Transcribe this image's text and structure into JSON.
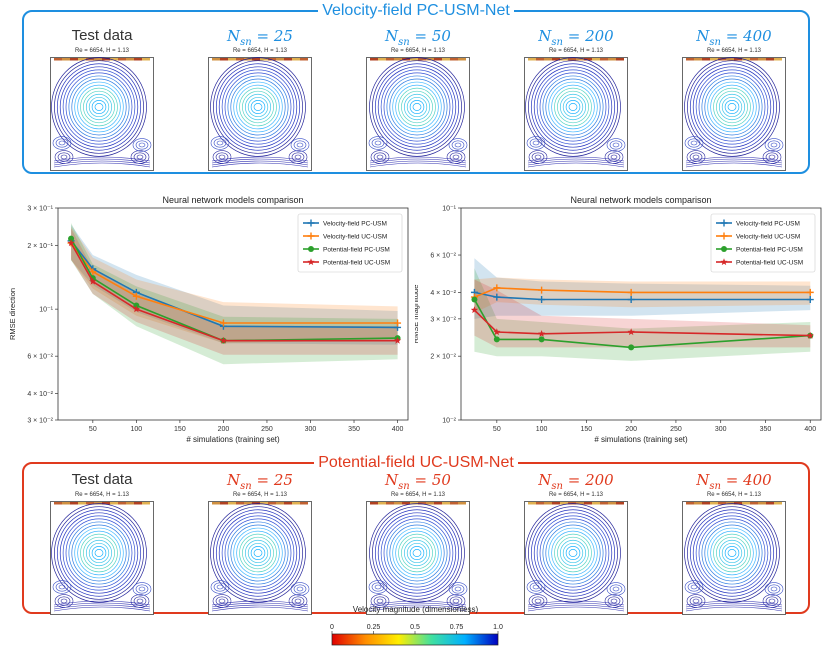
{
  "top_panel": {
    "title": "Velocity-field PC-USM-Net",
    "color": "#1e8fe0",
    "cells": [
      {
        "label": "Test data",
        "kind": "plain",
        "subtitle": "Re = 6654, H = 1.13"
      },
      {
        "label": "Nsn = 25",
        "kind": "math",
        "subtitle": "Re = 6654, H = 1.13"
      },
      {
        "label": "Nsn = 50",
        "kind": "math",
        "subtitle": "Re = 6654, H = 1.13"
      },
      {
        "label": "Nsn = 200",
        "kind": "math",
        "subtitle": "Re = 6654, H = 1.13"
      },
      {
        "label": "Nsn = 400",
        "kind": "math",
        "subtitle": "Re = 6654, H = 1.13"
      }
    ]
  },
  "bottom_panel": {
    "title": "Potential-field UC-USM-Net",
    "color": "#e03a1e",
    "cells": [
      {
        "label": "Test data",
        "kind": "plain",
        "subtitle": "Re = 6654, H = 1.13"
      },
      {
        "label": "Nsn = 25",
        "kind": "math",
        "subtitle": "Re = 6654, H = 1.13"
      },
      {
        "label": "Nsn = 50",
        "kind": "math",
        "subtitle": "Re = 6654, H = 1.13"
      },
      {
        "label": "Nsn = 200",
        "kind": "math",
        "subtitle": "Re = 6654, H = 1.13"
      },
      {
        "label": "Nsn = 400",
        "kind": "math",
        "subtitle": "Re = 6654, H = 1.13"
      }
    ]
  },
  "chart_data": [
    {
      "type": "line",
      "title": "Neural network models comparison",
      "xlabel": "# simulations (training set)",
      "ylabel": "RMSE direction",
      "yscale": "log",
      "xlim": [
        10,
        412
      ],
      "ylim": [
        0.03,
        0.3
      ],
      "xticks": [
        50,
        100,
        150,
        200,
        250,
        300,
        350,
        400
      ],
      "yticks": [
        {
          "value": 0.03,
          "label": "3 × 10⁻²"
        },
        {
          "value": 0.04,
          "label": "4 × 10⁻²"
        },
        {
          "value": 0.06,
          "label": "6 × 10⁻²"
        },
        {
          "value": 0.1,
          "label": "10⁻¹"
        },
        {
          "value": 0.2,
          "label": "2 × 10⁻¹"
        },
        {
          "value": 0.3,
          "label": "3 × 10⁻¹"
        }
      ],
      "x": [
        25,
        50,
        100,
        200,
        400
      ],
      "legend_position": "top-right",
      "series": [
        {
          "name": "Velocity-field PC-USM",
          "color": "#1f77b4",
          "marker": "plus",
          "values": [
            0.21,
            0.155,
            0.12,
            0.083,
            0.082
          ],
          "lower": [
            0.17,
            0.13,
            0.097,
            0.069,
            0.068
          ],
          "upper": [
            0.25,
            0.18,
            0.145,
            0.104,
            0.098
          ]
        },
        {
          "name": "Velocity-field UC-USM",
          "color": "#ff7f0e",
          "marker": "plus",
          "values": [
            0.205,
            0.15,
            0.115,
            0.086,
            0.086
          ],
          "lower": [
            0.17,
            0.125,
            0.093,
            0.069,
            0.072
          ],
          "upper": [
            0.245,
            0.175,
            0.138,
            0.108,
            0.103
          ]
        },
        {
          "name": "Potential-field PC-USM",
          "color": "#2ca02c",
          "marker": "circle",
          "values": [
            0.215,
            0.14,
            0.104,
            0.071,
            0.073
          ],
          "lower": [
            0.17,
            0.118,
            0.083,
            0.055,
            0.058
          ],
          "upper": [
            0.255,
            0.163,
            0.128,
            0.092,
            0.09
          ]
        },
        {
          "name": "Potential-field UC-USM",
          "color": "#d62728",
          "marker": "star",
          "values": [
            0.205,
            0.135,
            0.1,
            0.071,
            0.071
          ],
          "lower": [
            0.172,
            0.118,
            0.087,
            0.061,
            0.061
          ],
          "upper": [
            0.24,
            0.155,
            0.118,
            0.084,
            0.083
          ]
        }
      ]
    },
    {
      "type": "line",
      "title": "Neural network models comparison",
      "xlabel": "# simulations (training set)",
      "ylabel": "RMSE magnitude",
      "yscale": "log",
      "xlim": [
        10,
        412
      ],
      "ylim": [
        0.01,
        0.1
      ],
      "xticks": [
        50,
        100,
        150,
        200,
        250,
        300,
        350,
        400
      ],
      "yticks": [
        {
          "value": 0.01,
          "label": "10⁻²"
        },
        {
          "value": 0.02,
          "label": "2 × 10⁻²"
        },
        {
          "value": 0.03,
          "label": "3 × 10⁻²"
        },
        {
          "value": 0.04,
          "label": "4 × 10⁻²"
        },
        {
          "value": 0.06,
          "label": "6 × 10⁻²"
        },
        {
          "value": 0.1,
          "label": "10⁻¹"
        }
      ],
      "x": [
        25,
        50,
        100,
        200,
        400
      ],
      "legend_position": "top-right",
      "series": [
        {
          "name": "Velocity-field PC-USM",
          "color": "#1f77b4",
          "marker": "plus",
          "values": [
            0.04,
            0.038,
            0.037,
            0.037,
            0.037
          ],
          "lower": [
            0.03,
            0.031,
            0.031,
            0.031,
            0.033
          ],
          "upper": [
            0.058,
            0.047,
            0.045,
            0.044,
            0.043
          ]
        },
        {
          "name": "Velocity-field UC-USM",
          "color": "#ff7f0e",
          "marker": "plus",
          "values": [
            0.038,
            0.042,
            0.041,
            0.04,
            0.04
          ],
          "lower": [
            0.032,
            0.036,
            0.035,
            0.034,
            0.035
          ],
          "upper": [
            0.046,
            0.047,
            0.046,
            0.045,
            0.045
          ]
        },
        {
          "name": "Potential-field PC-USM",
          "color": "#2ca02c",
          "marker": "circle",
          "values": [
            0.037,
            0.024,
            0.024,
            0.022,
            0.025
          ],
          "lower": [
            0.021,
            0.02,
            0.02,
            0.019,
            0.021
          ],
          "upper": [
            0.052,
            0.03,
            0.029,
            0.027,
            0.029
          ]
        },
        {
          "name": "Potential-field UC-USM",
          "color": "#d62728",
          "marker": "star",
          "values": [
            0.033,
            0.026,
            0.0255,
            0.026,
            0.025
          ],
          "lower": [
            0.025,
            0.022,
            0.022,
            0.022,
            0.022
          ],
          "upper": [
            0.046,
            0.041,
            0.031,
            0.03,
            0.028
          ]
        }
      ]
    }
  ],
  "colorbar": {
    "title": "Velocity magnitude (dimensionless)",
    "ticks": [
      0,
      0.25,
      0.5,
      0.75,
      1.0
    ],
    "tick_labels": [
      "0",
      "0.25",
      "0.5",
      "0.75",
      "1.0"
    ],
    "colors": [
      "#e00000",
      "#ff8c00",
      "#ffee00",
      "#40e0a0",
      "#00b0ff",
      "#0000c0"
    ]
  }
}
